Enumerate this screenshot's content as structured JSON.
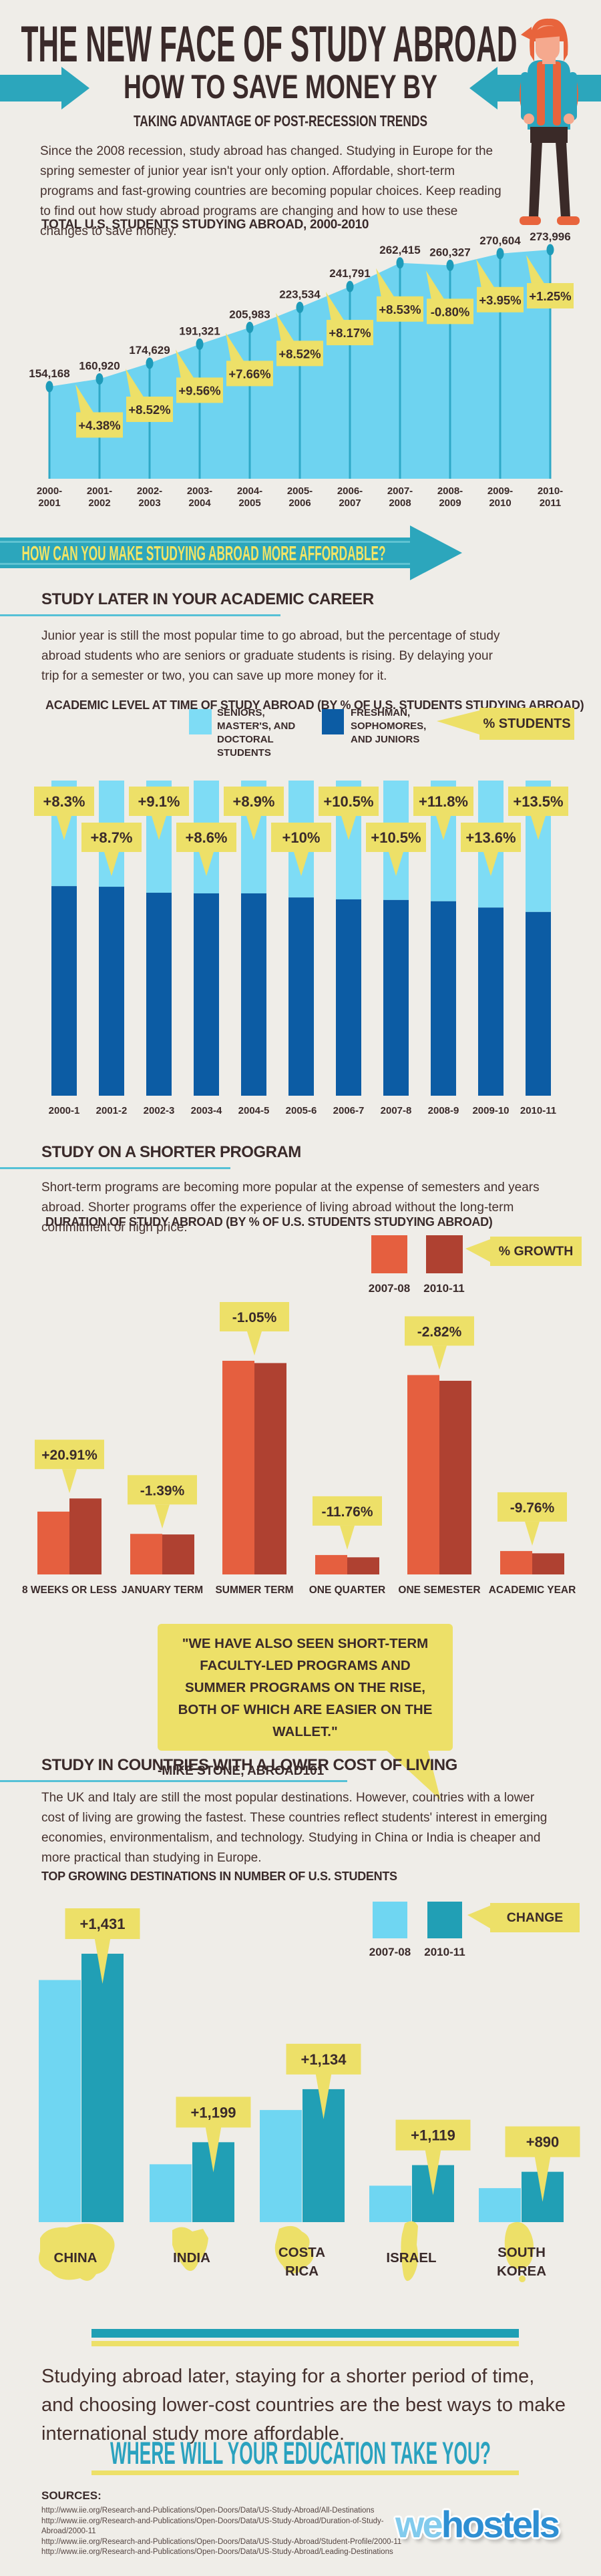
{
  "header": {
    "title": "THE NEW FACE OF STUDY ABROAD",
    "subtitle": "HOW TO SAVE MONEY BY",
    "tagline": "TAKING ADVANTAGE OF POST-RECESSION TRENDS",
    "intro": "Since the 2008 recession, study abroad has changed. Studying in Europe for the spring semester of junior year isn't your only option. Affordable, short-term programs and fast-growing countries are becoming popular choices. Keep reading to find out how study abroad programs are changing and how to use these changes to save money."
  },
  "banner": {
    "text": "HOW CAN YOU MAKE STUDYING ABROAD MORE AFFORDABLE?"
  },
  "section_academic": {
    "heading": "STUDY LATER IN YOUR ACADEMIC CAREER",
    "body": "Junior year is still the most popular time to go abroad, but the percentage of study abroad students who are seniors or graduate students is rising. By delaying your trip for a semester or two, you can save up more money for it.",
    "chart_title": "ACADEMIC LEVEL AT TIME OF STUDY ABROAD (BY % OF U.S. STUDENTS STUDYING ABROAD)",
    "legend_light": "SENIORS,\nMASTER'S, AND\nDOCTORAL\nSTUDENTS",
    "legend_dark": "FRESHMAN,\nSOPHOMORES,\nAND JUNIORS",
    "legend_callout": "% STUDENTS"
  },
  "section_duration": {
    "heading": "STUDY ON A SHORTER PROGRAM",
    "body": "Short-term programs are becoming more popular at the expense of semesters and years abroad. Shorter programs offer the experience of living abroad without the long-term commitment or high price.",
    "chart_title": "DURATION OF STUDY ABROAD (BY % OF U.S. STUDENTS STUDYING ABROAD)",
    "legend_y1": "2007-08",
    "legend_y2": "2010-11",
    "legend_callout": "% GROWTH"
  },
  "quote": {
    "text": "\"WE HAVE ALSO SEEN SHORT-TERM FACULTY-LED PROGRAMS AND SUMMER PROGRAMS ON THE RISE, BOTH OF WHICH ARE EASIER ON THE WALLET.\"",
    "attribution": "-MIKE STONE, ABROAD101"
  },
  "section_destinations": {
    "heading": "STUDY IN COUNTRIES WITH A LOWER COST OF LIVING",
    "body": "The UK and Italy are still the most popular destinations. However, countries with a lower cost of living are growing the fastest. These countries reflect students' interest in emerging economies, environmentalism, and technology. Studying in China or India is cheaper and more practical than studying in Europe.",
    "chart_title": "TOP GROWING DESTINATIONS IN NUMBER OF U.S. STUDENTS",
    "legend_y1": "2007-08",
    "legend_y2": "2010-11",
    "legend_callout": "CHANGE"
  },
  "closing": {
    "message": "Studying abroad later, staying for a shorter period of time, and choosing lower-cost countries are the best ways to make international study more affordable.",
    "cta": "WHERE WILL YOUR EDUCATION TAKE YOU?"
  },
  "sources": {
    "label": "SOURCES:",
    "urls": [
      "http://www.iie.org/Research-and-Publications/Open-Doors/Data/US-Study-Abroad/All-Destinations",
      "http://www.iie.org/Research-and-Publications/Open-Doors/Data/US-Study-Abroad/Duration-of-Study-Abroad/2000-11",
      "http://www.iie.org/Research-and-Publications/Open-Doors/Data/US-Study-Abroad/Student-Profile/2000-11",
      "http://www.iie.org/Research-and-Publications/Open-Doors/Data/US-Study-Abroad/Leading-Destinations"
    ]
  },
  "brand": {
    "we": "we",
    "hostels": "hostels"
  },
  "colors": {
    "background": "#EFEDE8",
    "dark_text": "#3A2A2A",
    "teal": "#2CA6BC",
    "teal_light_stripe": "#5FC3D2",
    "yellow": "#EDE068",
    "area_blue": "#6ED3F0",
    "stem_teal": "#2FA9C7",
    "dot_teal": "#1E9BB9",
    "stack_light_blue": "#7EDCF5",
    "stack_dark_blue": "#0C5CA4",
    "orange": "#E55F3F",
    "dark_red": "#AF4131",
    "dest_light_blue": "#6FD6F2",
    "dest_teal": "#219FB5",
    "cta_teal": "#2AA2BF",
    "brand_we": "#82CBED",
    "brand_hostels": "#2E8FD3"
  },
  "chart_data": [
    {
      "type": "area",
      "title": "TOTAL U.S. STUDENTS STUDYING ABROAD, 2000-2010",
      "x": [
        "2000-2001",
        "2001-2002",
        "2002-2003",
        "2003-2004",
        "2004-2005",
        "2005-2006",
        "2006-2007",
        "2007-2008",
        "2008-2009",
        "2009-2010",
        "2010-2011"
      ],
      "values": [
        154168,
        160920,
        174629,
        191321,
        205983,
        223534,
        241791,
        262415,
        260327,
        270604,
        273996
      ],
      "value_labels": [
        "154,168",
        "160,920",
        "174,629",
        "191,321",
        "205,983",
        "223,534",
        "241,791",
        "262,415",
        "260,327",
        "270,604",
        "273,996"
      ],
      "growth": [
        "+4.38%",
        "+8.52%",
        "+9.56%",
        "+7.66%",
        "+8.52%",
        "+8.17%",
        "+8.53%",
        "-0.80%",
        "+3.95%",
        "+1.25%"
      ],
      "xlabel": "",
      "ylabel": "students",
      "grid": false,
      "legend_position": "none"
    },
    {
      "type": "bar",
      "title": "ACADEMIC LEVEL AT TIME OF STUDY ABROAD (BY % OF U.S. STUDENTS STUDYING ABROAD)",
      "categories": [
        "2000-1",
        "2001-2",
        "2002-3",
        "2003-4",
        "2004-5",
        "2005-6",
        "2006-7",
        "2007-8",
        "2008-9",
        "2009-10",
        "2010-11"
      ],
      "callouts": [
        "+8.3%",
        "+8.7%",
        "+9.1%",
        "+8.6%",
        "+8.9%",
        "+10%",
        "+10.5%",
        "+10.5%",
        "+11.8%",
        "+13.6%",
        "+13.5%"
      ],
      "series": [
        {
          "name": "SENIORS, MASTER'S, AND DOCTORAL STUDENTS",
          "share_of_bar_pct": [
            33.5,
            33.7,
            35.6,
            35.8,
            35.8,
            37.1,
            37.7,
            37.9,
            38.3,
            40.3,
            41.7
          ]
        },
        {
          "name": "FRESHMAN, SOPHOMORES, AND JUNIORS",
          "share_of_bar_pct": [
            66.5,
            66.3,
            64.4,
            64.2,
            64.2,
            62.9,
            62.3,
            62.1,
            61.7,
            59.7,
            58.3
          ]
        }
      ],
      "note": "stacked bars; yellow callouts give % of students who are seniors/master's/doctoral"
    },
    {
      "type": "bar",
      "title": "DURATION OF STUDY ABROAD (BY % OF U.S. STUDENTS STUDYING ABROAD)",
      "categories": [
        "8 WEEKS OR LESS",
        "JANUARY TERM",
        "SUMMER TERM",
        "ONE QUARTER",
        "ONE SEMESTER",
        "ACADEMIC YEAR"
      ],
      "growth": [
        "+20.91%",
        "-1.39%",
        "-1.05%",
        "-11.76%",
        "-2.82%",
        "-9.76%"
      ],
      "series": [
        {
          "name": "2007-08",
          "values": [
            11.0,
            7.1,
            37.4,
            3.4,
            34.9,
            4.1
          ]
        },
        {
          "name": "2010-11",
          "values": [
            13.3,
            7.0,
            37.0,
            3.0,
            33.9,
            3.7
          ]
        }
      ],
      "ylabel": "% of students",
      "grid": false
    },
    {
      "type": "bar",
      "title": "TOP GROWING DESTINATIONS IN NUMBER OF U.S. STUDENTS",
      "categories": [
        "CHINA",
        "INDIA",
        "COSTA\nRICA",
        "ISRAEL",
        "SOUTH\nKOREA"
      ],
      "change": [
        "+1,431",
        "+1,199",
        "+1,134",
        "+1,119",
        "+890"
      ],
      "series": [
        {
          "name": "2007-08",
          "values": [
            13165,
            3146,
            6096,
            1981,
            1847
          ]
        },
        {
          "name": "2010-11",
          "values": [
            14596,
            4345,
            7230,
            3100,
            2737
          ]
        }
      ],
      "ylabel": "students",
      "grid": false
    }
  ]
}
